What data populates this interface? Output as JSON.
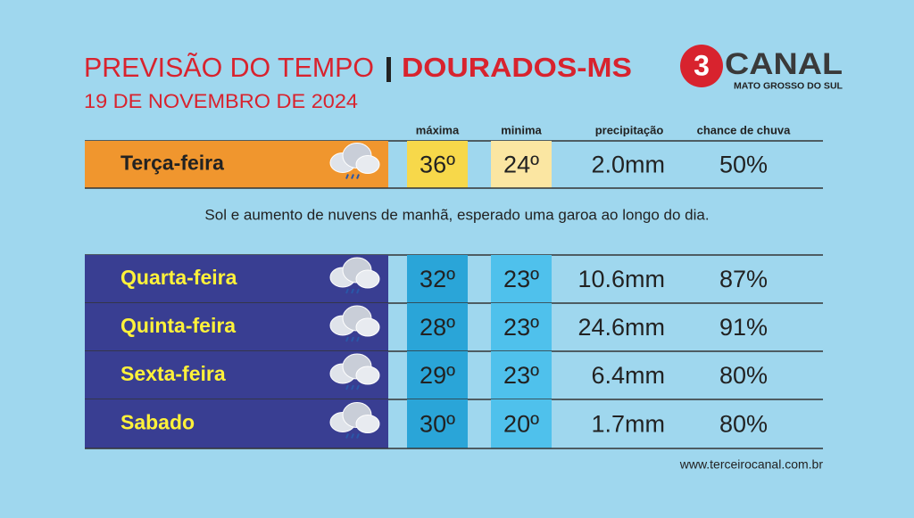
{
  "header": {
    "title_left": "PREVISÃO DO TEMPO",
    "title_right": "DOURADOS-MS",
    "date": "19 DE NOVEMBRO DE 2024"
  },
  "logo": {
    "number": "3",
    "name": "CANAL",
    "region": "MATO GROSSO DO SUL"
  },
  "table": {
    "columns": [
      "máxima",
      "minima",
      "precipitação",
      "chance de chuva"
    ],
    "today": {
      "day": "Terça-feira",
      "max": "36º",
      "min": "24º",
      "precipitation": "2.0mm",
      "chance": "50%"
    },
    "description": "Sol e aumento de nuvens de manhã, esperado uma garoa ao longo do dia.",
    "rows": [
      {
        "day": "Quarta-feira",
        "max": "32º",
        "min": "23º",
        "precipitation": "10.6mm",
        "chance": "87%"
      },
      {
        "day": "Quinta-feira",
        "max": "28º",
        "min": "23º",
        "precipitation": "24.6mm",
        "chance": "91%"
      },
      {
        "day": "Sexta-feira",
        "max": "29º",
        "min": "23º",
        "precipitation": "6.4mm",
        "chance": "80%"
      },
      {
        "day": "Sabado",
        "max": "30º",
        "min": "20º",
        "precipitation": "1.7mm",
        "chance": "80%"
      }
    ]
  },
  "footer": {
    "url": "www.terceirocanal.com.br"
  }
}
